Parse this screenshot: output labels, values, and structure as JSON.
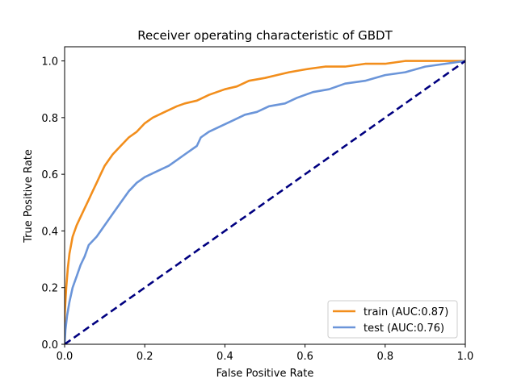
{
  "chart_data": {
    "type": "line",
    "title": "Receiver operating characteristic of GBDT",
    "xlabel": "False Positive Rate",
    "ylabel": "True Positive Rate",
    "xlim": [
      0.0,
      1.0
    ],
    "ylim": [
      0.0,
      1.05
    ],
    "xticks": [
      "0.0",
      "0.2",
      "0.4",
      "0.6",
      "0.8",
      "1.0"
    ],
    "yticks": [
      "0.0",
      "0.2",
      "0.4",
      "0.6",
      "0.8",
      "1.0"
    ],
    "grid": false,
    "legend_position": "lower-right",
    "series": [
      {
        "name": "train (AUC:0.87)",
        "color": "#f28e1c",
        "style": "solid",
        "points": [
          [
            0.0,
            0.0
          ],
          [
            0.0,
            0.1
          ],
          [
            0.004,
            0.2
          ],
          [
            0.008,
            0.27
          ],
          [
            0.012,
            0.32
          ],
          [
            0.02,
            0.38
          ],
          [
            0.03,
            0.42
          ],
          [
            0.04,
            0.45
          ],
          [
            0.05,
            0.48
          ],
          [
            0.06,
            0.51
          ],
          [
            0.07,
            0.54
          ],
          [
            0.08,
            0.57
          ],
          [
            0.09,
            0.6
          ],
          [
            0.1,
            0.63
          ],
          [
            0.12,
            0.67
          ],
          [
            0.14,
            0.7
          ],
          [
            0.16,
            0.73
          ],
          [
            0.18,
            0.75
          ],
          [
            0.2,
            0.78
          ],
          [
            0.22,
            0.8
          ],
          [
            0.25,
            0.82
          ],
          [
            0.28,
            0.84
          ],
          [
            0.3,
            0.85
          ],
          [
            0.33,
            0.86
          ],
          [
            0.36,
            0.88
          ],
          [
            0.4,
            0.9
          ],
          [
            0.43,
            0.91
          ],
          [
            0.46,
            0.93
          ],
          [
            0.5,
            0.94
          ],
          [
            0.53,
            0.95
          ],
          [
            0.56,
            0.96
          ],
          [
            0.6,
            0.97
          ],
          [
            0.65,
            0.98
          ],
          [
            0.7,
            0.98
          ],
          [
            0.75,
            0.99
          ],
          [
            0.8,
            0.99
          ],
          [
            0.85,
            1.0
          ],
          [
            0.9,
            1.0
          ],
          [
            1.0,
            1.0
          ]
        ]
      },
      {
        "name": "test (AUC:0.76)",
        "color": "#6b95d9",
        "style": "solid",
        "points": [
          [
            0.0,
            0.0
          ],
          [
            0.002,
            0.05
          ],
          [
            0.006,
            0.1
          ],
          [
            0.012,
            0.15
          ],
          [
            0.02,
            0.2
          ],
          [
            0.03,
            0.24
          ],
          [
            0.04,
            0.28
          ],
          [
            0.05,
            0.31
          ],
          [
            0.06,
            0.35
          ],
          [
            0.08,
            0.38
          ],
          [
            0.1,
            0.42
          ],
          [
            0.12,
            0.46
          ],
          [
            0.14,
            0.5
          ],
          [
            0.16,
            0.54
          ],
          [
            0.18,
            0.57
          ],
          [
            0.2,
            0.59
          ],
          [
            0.23,
            0.61
          ],
          [
            0.26,
            0.63
          ],
          [
            0.28,
            0.65
          ],
          [
            0.3,
            0.67
          ],
          [
            0.33,
            0.7
          ],
          [
            0.34,
            0.73
          ],
          [
            0.36,
            0.75
          ],
          [
            0.39,
            0.77
          ],
          [
            0.42,
            0.79
          ],
          [
            0.45,
            0.81
          ],
          [
            0.48,
            0.82
          ],
          [
            0.51,
            0.84
          ],
          [
            0.55,
            0.85
          ],
          [
            0.58,
            0.87
          ],
          [
            0.62,
            0.89
          ],
          [
            0.66,
            0.9
          ],
          [
            0.7,
            0.92
          ],
          [
            0.75,
            0.93
          ],
          [
            0.8,
            0.95
          ],
          [
            0.85,
            0.96
          ],
          [
            0.9,
            0.98
          ],
          [
            0.95,
            0.99
          ],
          [
            1.0,
            1.0
          ]
        ]
      },
      {
        "name": "",
        "color": "#000080",
        "style": "dashed",
        "points": [
          [
            0.0,
            0.0
          ],
          [
            1.0,
            1.0
          ]
        ]
      }
    ]
  }
}
